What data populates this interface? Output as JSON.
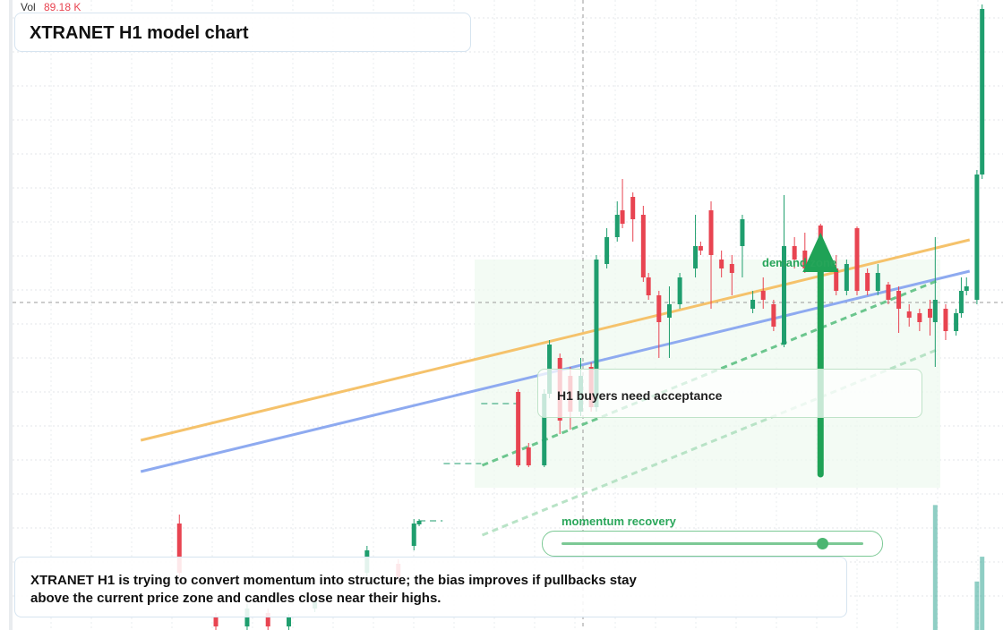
{
  "chart_data": {
    "type": "candlestick",
    "title": "XTRANET H1 model chart",
    "vol_label": "Vol",
    "vol_value": "89.18 K",
    "xlim": [
      -32,
      158
    ],
    "ylim": [
      0,
      704
    ],
    "grid": true,
    "up_color": "#1f9e6e",
    "down_color": "#e84451",
    "candles": {
      "x": [
        0,
        7,
        13,
        17,
        21,
        26,
        36,
        42,
        45,
        46,
        65,
        67,
        70,
        71,
        73,
        75,
        77,
        79,
        80,
        82,
        84,
        85,
        87,
        89,
        90,
        92,
        94,
        96,
        99,
        100,
        102,
        104,
        106,
        108,
        110,
        112,
        114,
        116,
        118,
        120,
        123,
        126,
        128,
        130,
        132,
        134,
        136,
        138,
        140,
        142,
        144,
        145,
        147,
        149,
        150,
        151,
        153,
        154
      ],
      "open": [
        119,
        14,
        4,
        19,
        4,
        24,
        64,
        74,
        94,
        118,
        266,
        204,
        184,
        264,
        304,
        284,
        244,
        294,
        249,
        409,
        439,
        469,
        484,
        464,
        394,
        374,
        349,
        364,
        404,
        429,
        469,
        414,
        409,
        429,
        359,
        379,
        364,
        319,
        429,
        424,
        452,
        404,
        379,
        449,
        399,
        379,
        386,
        379,
        356,
        354,
        359,
        344,
        359,
        334,
        354,
        379,
        369,
        509
      ],
      "high": [
        129,
        19,
        29,
        24,
        18,
        36,
        94,
        79,
        124,
        124,
        269,
        209,
        269,
        324,
        309,
        294,
        304,
        299,
        419,
        449,
        479,
        504,
        489,
        474,
        399,
        379,
        384,
        399,
        464,
        434,
        479,
        424,
        419,
        464,
        379,
        394,
        369,
        486,
        439,
        444,
        454,
        419,
        414,
        451,
        404,
        409,
        389,
        384,
        364,
        359,
        369,
        439,
        364,
        359,
        394,
        394,
        514,
        699
      ],
      "low": [
        59,
        0,
        0,
        0,
        0,
        20,
        59,
        54,
        89,
        116,
        182,
        182,
        182,
        259,
        219,
        224,
        239,
        244,
        244,
        404,
        434,
        449,
        434,
        389,
        369,
        304,
        304,
        359,
        394,
        419,
        359,
        394,
        374,
        394,
        354,
        359,
        334,
        316,
        404,
        399,
        399,
        374,
        374,
        374,
        374,
        374,
        364,
        332,
        339,
        334,
        329,
        294,
        324,
        329,
        349,
        374,
        364,
        504
      ],
      "close": [
        64,
        4,
        24,
        4,
        14,
        32,
        89,
        59,
        119,
        122,
        184,
        184,
        264,
        319,
        234,
        244,
        284,
        249,
        414,
        439,
        464,
        454,
        459,
        394,
        374,
        344,
        364,
        394,
        429,
        424,
        419,
        404,
        399,
        459,
        369,
        369,
        339,
        429,
        414,
        404,
        404,
        379,
        409,
        379,
        379,
        399,
        369,
        359,
        349,
        344,
        349,
        369,
        334,
        354,
        379,
        384,
        509,
        694
      ]
    },
    "volume": {
      "x": [
        145,
        153,
        154
      ],
      "values": [
        152,
        59,
        89.18
      ],
      "vlim": [
        0,
        160
      ],
      "color": "#1f9e8a"
    },
    "drawings": [
      {
        "color": "#f5c26b",
        "x": [
          -7.4,
          151.6
        ],
        "y": [
          212,
          436
        ]
      },
      {
        "color": "#8eaaf0",
        "x": [
          -7.4,
          151.6
        ],
        "y": [
          177,
          401
        ]
      },
      {
        "color": "#6cc68e",
        "x": [
          58.1,
          145.7
        ],
        "y": [
          184,
          391
        ],
        "dash": true
      },
      {
        "color": "#b8e3c6",
        "x": [
          58.1,
          145.7
        ],
        "y": [
          106,
          314
        ],
        "dash": true
      },
      {
        "color": "#1f9e6e",
        "x": [
          57.9,
          64.8
        ],
        "y": [
          253,
          253
        ],
        "dash": true
      },
      {
        "color": "#1f9e6e",
        "x": [
          50.7,
          57.9
        ],
        "y": [
          186,
          186
        ],
        "dash": true
      },
      {
        "color": "#1f9e6e",
        "x": [
          46,
          50.5
        ],
        "y": [
          122,
          122
        ],
        "dash": true
      }
    ],
    "arrow": {
      "x": 123,
      "y": [
        174,
        444
      ],
      "color": "#1fa256"
    },
    "zone_label": "demand zone",
    "note": "H1 buyers need acceptance",
    "slider_label": "momentum recovery",
    "summary": "XTRANET H1 is trying to convert momentum into structure; the bias improves if pullbacks stay above the current price zone and candles close near their highs."
  }
}
